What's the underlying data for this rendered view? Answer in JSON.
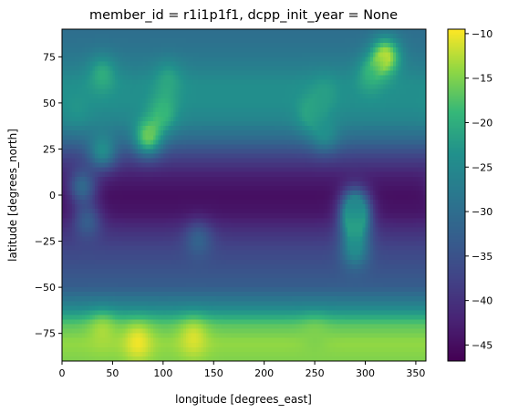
{
  "chart_data": {
    "type": "heatmap",
    "title": "member_id = r1i1p1f1, dcpp_init_year = None",
    "xlabel": "longitude [degrees_east]",
    "ylabel": "latitude [degrees_north]",
    "xlim": [
      0,
      360
    ],
    "ylim": [
      -90,
      90
    ],
    "x_ticks": [
      0,
      50,
      100,
      150,
      200,
      250,
      300,
      350
    ],
    "y_ticks": [
      -75,
      -50,
      -25,
      0,
      25,
      50,
      75
    ],
    "x_tick_labels": [
      "0",
      "50",
      "100",
      "150",
      "200",
      "250",
      "300",
      "350"
    ],
    "y_tick_labels": [
      "−75",
      "−50",
      "−25",
      "0",
      "25",
      "50",
      "75"
    ],
    "colormap": "viridis",
    "color_range": [
      -46.8,
      -9.5
    ],
    "colorbar_ticks": [
      -45,
      -40,
      -35,
      -30,
      -25,
      -20,
      -15,
      -10
    ],
    "colorbar_tick_labels": [
      "−45",
      "−40",
      "−35",
      "−30",
      "−25",
      "−20",
      "−15",
      "−10"
    ],
    "grid": false,
    "zonal_mean_profile": {
      "lat": [
        -90,
        -80,
        -70,
        -60,
        -50,
        -40,
        -30,
        -20,
        -10,
        0,
        10,
        20,
        30,
        40,
        50,
        60,
        70,
        80,
        90
      ],
      "value": [
        -15,
        -14,
        -17,
        -26,
        -33,
        -35,
        -37,
        -40,
        -44,
        -45,
        -43,
        -38,
        -31,
        -26,
        -24,
        -24,
        -27,
        -29,
        -30
      ]
    },
    "features": {
      "land_anomalies": [
        {
          "lon": 100,
          "lat": 45,
          "value": -19
        },
        {
          "lon": 85,
          "lat": 32,
          "value": -16
        },
        {
          "lon": 40,
          "lat": 65,
          "value": -20
        },
        {
          "lon": 105,
          "lat": 62,
          "value": -21
        },
        {
          "lon": 15,
          "lat": 48,
          "value": -23
        },
        {
          "lon": 40,
          "lat": 25,
          "value": -24
        },
        {
          "lon": 20,
          "lat": 5,
          "value": -31
        },
        {
          "lon": 25,
          "lat": -15,
          "value": -33
        },
        {
          "lon": 135,
          "lat": -25,
          "value": -32
        },
        {
          "lon": 320,
          "lat": 75,
          "value": -12
        },
        {
          "lon": 305,
          "lat": 65,
          "value": -20
        },
        {
          "lon": 245,
          "lat": 45,
          "value": -21
        },
        {
          "lon": 260,
          "lat": 35,
          "value": -24
        },
        {
          "lon": 260,
          "lat": 55,
          "value": -22
        },
        {
          "lon": 290,
          "lat": -5,
          "value": -27
        },
        {
          "lon": 290,
          "lat": -30,
          "value": -25
        },
        {
          "lon": 290,
          "lat": -15,
          "value": -20
        },
        {
          "lon": 75,
          "lat": -80,
          "value": -10
        },
        {
          "lon": 130,
          "lat": -78,
          "value": -11
        },
        {
          "lon": 40,
          "lat": -75,
          "value": -13
        },
        {
          "lon": 250,
          "lat": -78,
          "value": -15
        }
      ]
    }
  }
}
